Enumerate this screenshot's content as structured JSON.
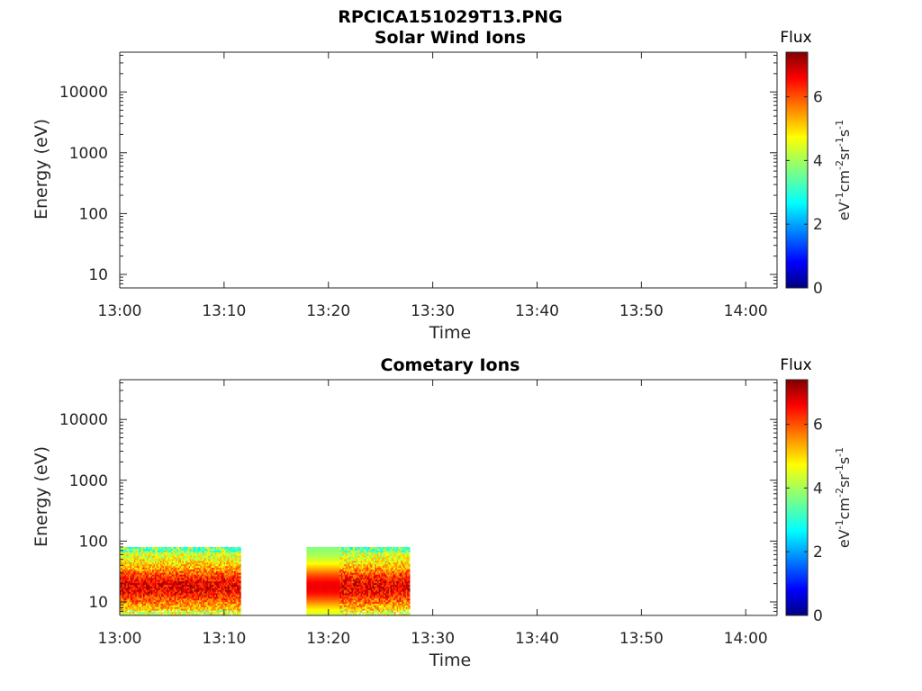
{
  "figure": {
    "title": "RPCICA151029T13.PNG"
  },
  "chart_data": [
    {
      "type": "heatmap",
      "title": "Solar Wind Ions",
      "xlabel": "Time",
      "ylabel": "Energy (eV)",
      "x_ticks": [
        "13:00",
        "13:10",
        "13:20",
        "13:30",
        "13:40",
        "13:50",
        "14:00"
      ],
      "y_ticks": [
        10,
        100,
        1000,
        10000
      ],
      "y_scale": "log",
      "y_range_eV": [
        6,
        45000
      ],
      "x_range_min": [
        0,
        63
      ],
      "colorbar": {
        "title": "Flux",
        "label_base": "eV",
        "label_parts": [
          "-1",
          "cm",
          "-2",
          "sr",
          "-1",
          "s",
          "-1"
        ],
        "ticks": [
          0,
          2,
          4,
          6
        ],
        "range": [
          0,
          7.4
        ],
        "colormap": "jet"
      },
      "blocks": []
    },
    {
      "type": "heatmap",
      "title": "Cometary Ions",
      "xlabel": "Time",
      "ylabel": "Energy (eV)",
      "x_ticks": [
        "13:00",
        "13:10",
        "13:20",
        "13:30",
        "13:40",
        "13:50",
        "14:00"
      ],
      "y_ticks": [
        10,
        100,
        1000,
        10000
      ],
      "y_scale": "log",
      "y_range_eV": [
        6,
        45000
      ],
      "x_range_min": [
        0,
        63
      ],
      "colorbar": {
        "title": "Flux",
        "label_base": "eV",
        "label_parts": [
          "-1",
          "cm",
          "-2",
          "sr",
          "-1",
          "s",
          "-1"
        ],
        "ticks": [
          0,
          2,
          4,
          6
        ],
        "range": [
          0,
          7.4
        ],
        "colormap": "jet"
      },
      "blocks": [
        {
          "t_start_min": 0.0,
          "t_end_min": 11.6,
          "e_min_eV": 6,
          "e_max_eV": 80,
          "pattern": "variable",
          "peak_flux": 6.6
        },
        {
          "t_start_min": 17.9,
          "t_end_min": 21.1,
          "e_min_eV": 6,
          "e_max_eV": 80,
          "pattern": "smooth",
          "peak_flux": 6.6
        },
        {
          "t_start_min": 21.1,
          "t_end_min": 27.8,
          "e_min_eV": 6,
          "e_max_eV": 80,
          "pattern": "variable",
          "peak_flux": 6.6
        }
      ]
    }
  ]
}
